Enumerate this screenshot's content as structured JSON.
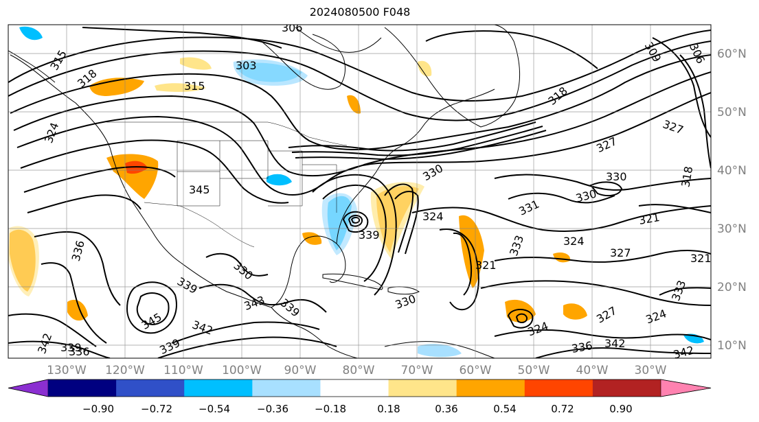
{
  "title": "2024080500 F048",
  "axes": {
    "lon_labels": [
      "130°W",
      "120°W",
      "110°W",
      "100°W",
      "90°W",
      "80°W",
      "70°W",
      "60°W",
      "50°W",
      "40°W",
      "30°W"
    ],
    "lat_labels": [
      "60°N",
      "50°N",
      "40°N",
      "30°N",
      "20°N",
      "10°N"
    ],
    "grid": true
  },
  "colorbar": {
    "ticks": [
      "−0.90",
      "−0.72",
      "−0.54",
      "−0.36",
      "−0.18",
      "0.18",
      "0.36",
      "0.54",
      "0.72",
      "0.90"
    ],
    "colors": [
      "#8b2fd1",
      "#000080",
      "#3050c8",
      "#00bfff",
      "#a8e0ff",
      "#ffffff",
      "#ffe58a",
      "#ffa500",
      "#ff4500",
      "#b22222",
      "#ff82b0"
    ],
    "extend": "both"
  },
  "contour_labels": [
    "306",
    "303",
    "315",
    "318",
    "324",
    "315",
    "336",
    "339",
    "342",
    "345",
    "339",
    "336",
    "342",
    "345",
    "330",
    "327",
    "321",
    "333",
    "309",
    "306",
    "318",
    "327",
    "330",
    "330",
    "324",
    "331",
    "321",
    "324",
    "327",
    "333",
    "339",
    "336",
    "342",
    "342",
    "318",
    "339",
    "330",
    "330",
    "327",
    "324",
    "321",
    "324",
    "343",
    "339"
  ],
  "colors": {
    "contour": "#000000",
    "grid": "#808080",
    "coast": "#000000",
    "tick_label": "#808080"
  }
}
